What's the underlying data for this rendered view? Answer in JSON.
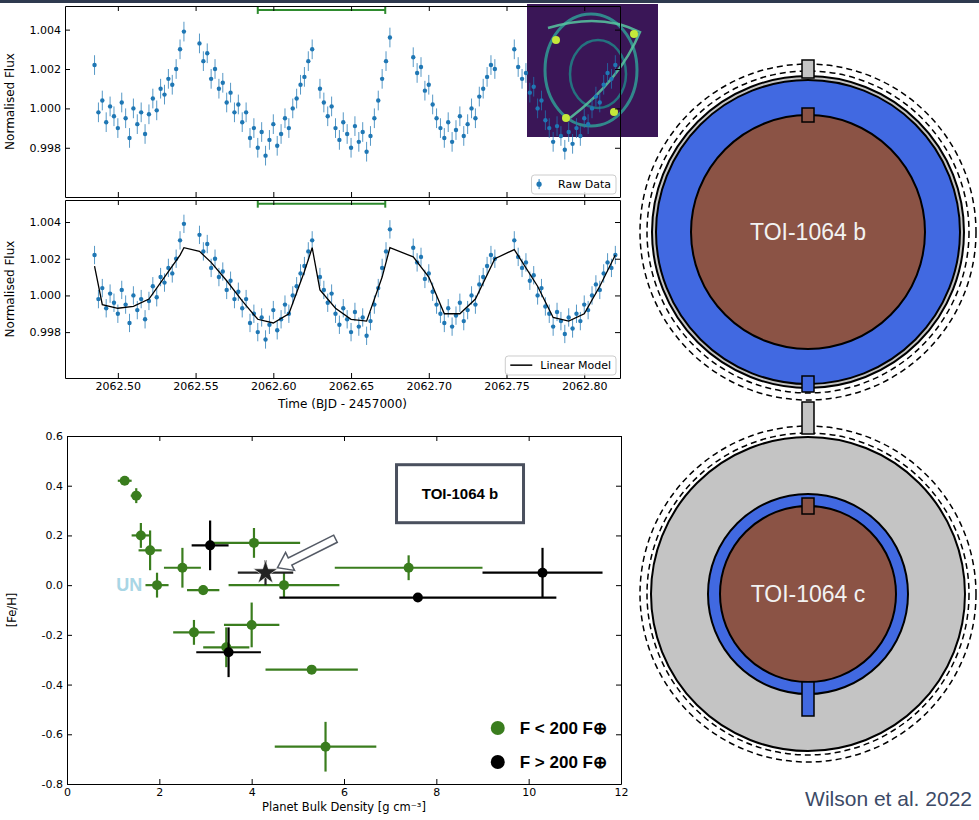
{
  "chart_data": [
    {
      "type": "scatter",
      "ylabel": "Normalised Flux",
      "xlim": [
        2062.466,
        2062.823
      ],
      "ylim": [
        0.9955,
        1.0052
      ],
      "xticks": [
        {
          "value": 2062.5,
          "label": "2062.50"
        },
        2062.55,
        {
          "value": 2062.6,
          "label": "2062.60"
        },
        2062.65,
        {
          "value": 2062.7,
          "label": "2062.70"
        },
        2062.75,
        {
          "value": 2062.8,
          "label": "2062.80"
        }
      ],
      "yticks": [
        0.998,
        {
          "value": 1.0,
          "label": "1.000"
        },
        1.002,
        1.004
      ],
      "tick_labels": "y",
      "legend": "lower right",
      "bracket": {
        "x": [
          2062.59,
          2062.672
        ],
        "y": 1.005,
        "color": "#2e8b2e"
      },
      "series": [
        {
          "name": "Raw Data",
          "type": "scatter",
          "marker": "circle",
          "color": "#1f77b4",
          "yerr": 0.0005,
          "x": [
            2062.485,
            2062.4875,
            2062.49,
            2062.4925,
            2062.495,
            2062.4975,
            2062.5,
            2062.5025,
            2062.505,
            2062.5075,
            2062.51,
            2062.5125,
            2062.515,
            2062.5175,
            2062.52,
            2062.5225,
            2062.525,
            2062.5275,
            2062.53,
            2062.5325,
            2062.535,
            2062.5375,
            2062.54,
            2062.5425,
            2062.5525,
            2062.555,
            2062.5575,
            2062.56,
            2062.5625,
            2062.565,
            2062.5675,
            2062.57,
            2062.5725,
            2062.575,
            2062.5775,
            2062.58,
            2062.5825,
            2062.585,
            2062.5875,
            2062.59,
            2062.5925,
            2062.595,
            2062.5975,
            2062.6,
            2062.6025,
            2062.605,
            2062.6075,
            2062.61,
            2062.6125,
            2062.615,
            2062.6175,
            2062.62,
            2062.6225,
            2062.625,
            2062.63,
            2062.6325,
            2062.635,
            2062.6375,
            2062.64,
            2062.6425,
            2062.645,
            2062.6475,
            2062.65,
            2062.6525,
            2062.655,
            2062.6575,
            2062.66,
            2062.6625,
            2062.665,
            2062.6675,
            2062.67,
            2062.6725,
            2062.675,
            2062.69,
            2062.6925,
            2062.695,
            2062.6975,
            2062.7,
            2062.7025,
            2062.705,
            2062.7075,
            2062.71,
            2062.7125,
            2062.715,
            2062.7175,
            2062.72,
            2062.7225,
            2062.725,
            2062.7275,
            2062.73,
            2062.7325,
            2062.735,
            2062.7375,
            2062.74,
            2062.7425,
            2062.755,
            2062.7575,
            2062.76,
            2062.7625,
            2062.765,
            2062.7675,
            2062.77,
            2062.7725,
            2062.775,
            2062.7775,
            2062.78,
            2062.7825,
            2062.785,
            2062.7875,
            2062.79,
            2062.7925,
            2062.795,
            2062.7975,
            2062.8,
            2062.8025,
            2062.805,
            2062.8075,
            2062.81,
            2062.8125,
            2062.815,
            2062.8175,
            2062.82
          ],
          "values": [
            1.0022,
            0.9998,
            1.0004,
            0.9993,
            1.0001,
            0.9996,
            0.999,
            1.0003,
            0.9995,
            0.9985,
            1.0,
            0.9992,
            0.9998,
            0.9987,
            0.9997,
            1.0005,
            0.9999,
            1.001,
            1.0007,
            1.0015,
            1.0012,
            1.002,
            1.003,
            1.0039,
            1.0033,
            1.0024,
            1.0028,
            1.0015,
            1.002,
            1.001,
            1.0013,
            1.0003,
            1.0008,
            0.9998,
            1.0002,
            0.9993,
            0.9998,
            0.9985,
            0.999,
            0.998,
            0.9988,
            0.9976,
            0.9984,
            0.9992,
            0.9981,
            0.9987,
            0.9995,
            0.999,
            1.0,
            1.0005,
            1.0012,
            1.0016,
            1.0024,
            1.003,
            1.001,
            1.0003,
            0.9996,
            1.0001,
            0.999,
            0.9984,
            0.9993,
            0.9987,
            0.998,
            0.9991,
            0.9983,
            0.9988,
            0.9978,
            0.9986,
            0.9995,
            1.0004,
            1.0015,
            1.0024,
            1.0036,
            1.0026,
            1.0018,
            1.0021,
            1.0009,
            1.0012,
            1.0002,
            0.9995,
            0.999,
            0.9985,
            0.9993,
            0.9983,
            0.9989,
            0.9996,
            0.9986,
            0.9992,
            1.0,
            0.9995,
            1.0006,
            1.001,
            1.0016,
            1.0022,
            1.002,
            1.003,
            1.0021,
            1.0015,
            1.0018,
            1.0008,
            1.0011,
            1.0,
            1.0004,
            0.9994,
            0.999,
            0.9983,
            0.9991,
            0.9986,
            0.9979,
            0.9988,
            0.9982,
            0.999,
            0.9986,
            0.9995,
            0.9992,
            1.0,
            1.0006,
            1.0003,
            1.0012,
            1.0018,
            1.0015,
            1.0022
          ]
        }
      ]
    },
    {
      "type": "scatter",
      "xlabel": "Time (BJD - 2457000)",
      "ylabel": "Normalised Flux",
      "xlim": [
        2062.466,
        2062.823
      ],
      "ylim": [
        0.9955,
        1.0052
      ],
      "xticks": [
        {
          "value": 2062.5,
          "label": "2062.50"
        },
        2062.55,
        {
          "value": 2062.6,
          "label": "2062.60"
        },
        2062.65,
        {
          "value": 2062.7,
          "label": "2062.70"
        },
        2062.75,
        {
          "value": 2062.8,
          "label": "2062.80"
        }
      ],
      "yticks": [
        0.998,
        {
          "value": 1.0,
          "label": "1.000"
        },
        1.002,
        1.004
      ],
      "legend": "lower right",
      "bracket": {
        "x": [
          2062.59,
          2062.672
        ],
        "y": 1.005,
        "color": "#2e8b2e"
      },
      "series": [
        {
          "type": "scatter",
          "marker": "circle",
          "color": "#1f77b4",
          "yerr": 0.0005,
          "x": [
            2062.485,
            2062.4875,
            2062.49,
            2062.4925,
            2062.495,
            2062.4975,
            2062.5,
            2062.5025,
            2062.505,
            2062.5075,
            2062.51,
            2062.5125,
            2062.515,
            2062.5175,
            2062.52,
            2062.5225,
            2062.525,
            2062.5275,
            2062.53,
            2062.5325,
            2062.535,
            2062.5375,
            2062.54,
            2062.5425,
            2062.5525,
            2062.555,
            2062.5575,
            2062.56,
            2062.5625,
            2062.565,
            2062.5675,
            2062.57,
            2062.5725,
            2062.575,
            2062.5775,
            2062.58,
            2062.5825,
            2062.585,
            2062.5875,
            2062.59,
            2062.5925,
            2062.595,
            2062.5975,
            2062.6,
            2062.6025,
            2062.605,
            2062.6075,
            2062.61,
            2062.6125,
            2062.615,
            2062.6175,
            2062.62,
            2062.6225,
            2062.625,
            2062.63,
            2062.6325,
            2062.635,
            2062.6375,
            2062.64,
            2062.6425,
            2062.645,
            2062.6475,
            2062.65,
            2062.6525,
            2062.655,
            2062.6575,
            2062.66,
            2062.6625,
            2062.665,
            2062.6675,
            2062.67,
            2062.6725,
            2062.675,
            2062.69,
            2062.6925,
            2062.695,
            2062.6975,
            2062.7,
            2062.7025,
            2062.705,
            2062.7075,
            2062.71,
            2062.7125,
            2062.715,
            2062.7175,
            2062.72,
            2062.7225,
            2062.725,
            2062.7275,
            2062.73,
            2062.7325,
            2062.735,
            2062.7375,
            2062.74,
            2062.7425,
            2062.755,
            2062.7575,
            2062.76,
            2062.7625,
            2062.765,
            2062.7675,
            2062.77,
            2062.7725,
            2062.775,
            2062.7775,
            2062.78,
            2062.7825,
            2062.785,
            2062.7875,
            2062.79,
            2062.7925,
            2062.795,
            2062.7975,
            2062.8,
            2062.8025,
            2062.805,
            2062.8075,
            2062.81,
            2062.8125,
            2062.815,
            2062.8175,
            2062.82
          ],
          "values": [
            1.0022,
            0.9998,
            1.0004,
            0.9993,
            1.0001,
            0.9996,
            0.999,
            1.0003,
            0.9995,
            0.9985,
            1.0,
            0.9992,
            0.9998,
            0.9987,
            0.9997,
            1.0005,
            0.9999,
            1.001,
            1.0007,
            1.0015,
            1.0012,
            1.002,
            1.003,
            1.0039,
            1.0033,
            1.0024,
            1.0028,
            1.0015,
            1.002,
            1.001,
            1.0013,
            1.0003,
            1.0008,
            0.9998,
            1.0002,
            0.9993,
            0.9998,
            0.9985,
            0.999,
            0.998,
            0.9988,
            0.9976,
            0.9984,
            0.9992,
            0.9981,
            0.9987,
            0.9995,
            0.999,
            1.0,
            1.0005,
            1.0012,
            1.0016,
            1.0024,
            1.003,
            1.001,
            1.0003,
            0.9996,
            1.0001,
            0.999,
            0.9984,
            0.9993,
            0.9987,
            0.998,
            0.9991,
            0.9983,
            0.9988,
            0.9978,
            0.9986,
            0.9995,
            1.0004,
            1.0015,
            1.0024,
            1.0036,
            1.0026,
            1.0018,
            1.0021,
            1.0009,
            1.0012,
            1.0002,
            0.9995,
            0.999,
            0.9985,
            0.9993,
            0.9983,
            0.9989,
            0.9996,
            0.9986,
            0.9992,
            1.0,
            0.9995,
            1.0006,
            1.001,
            1.0016,
            1.0022,
            1.002,
            1.003,
            1.0021,
            1.0015,
            1.0018,
            1.0008,
            1.0011,
            1.0,
            1.0004,
            0.9994,
            0.999,
            0.9983,
            0.9991,
            0.9986,
            0.9979,
            0.9988,
            0.9982,
            0.999,
            0.9986,
            0.9995,
            0.9992,
            1.0,
            1.0006,
            1.0003,
            1.0012,
            1.0018,
            1.0015,
            1.0022
          ]
        },
        {
          "name": "Linear Model",
          "type": "line",
          "line_style": "solid",
          "color": "#000000",
          "x": [
            2062.485,
            2062.49,
            2062.5,
            2062.51,
            2062.52,
            2062.53,
            2062.54,
            2062.5425,
            2062.5525,
            2062.56,
            2062.57,
            2062.58,
            2062.59,
            2062.6,
            2062.61,
            2062.62,
            2062.625,
            2062.63,
            2062.64,
            2062.65,
            2062.66,
            2062.67,
            2062.675,
            2062.69,
            2062.7,
            2062.71,
            2062.72,
            2062.73,
            2062.7425,
            2062.755,
            2062.77,
            2062.78,
            2062.79,
            2062.8,
            2062.81,
            2062.82
          ],
          "values": [
            1.0016,
            0.9995,
            0.9993,
            0.9994,
            0.9998,
            1.001,
            1.0022,
            1.0026,
            1.0024,
            1.0018,
            1.0008,
            0.9997,
            0.9987,
            0.9985,
            0.999,
            1.0013,
            1.0026,
            1.0003,
            0.9993,
            0.9987,
            0.9986,
            1.001,
            1.0026,
            1.0021,
            1.001,
            0.999,
            0.999,
            0.9998,
            1.002,
            1.0025,
            1.0005,
            0.9988,
            0.9986,
            0.999,
            1.0005,
            1.0022
          ]
        }
      ]
    },
    {
      "type": "scatter",
      "xlabel": "Planet Bulk Density [g cm⁻³]",
      "ylabel": "[Fe/H]",
      "xlim": [
        0,
        12
      ],
      "ylim": [
        -0.8,
        0.6
      ],
      "xticks": [
        0,
        2,
        4,
        6,
        8,
        10,
        12
      ],
      "yticks": [
        -0.8,
        -0.6,
        -0.4,
        -0.2,
        {
          "value": 0,
          "label": "0.0"
        },
        0.2,
        0.4,
        0.6
      ],
      "legend": "lower right",
      "annotations": [
        {
          "text": "UN",
          "x": 1.35,
          "y": 0.0,
          "color": "#a9d6e5"
        }
      ],
      "callout": {
        "text": "TOI-1064 b"
      },
      "series": [
        {
          "name": "F < 200 F⊕",
          "marker": "circle",
          "color": "#3a7d1e",
          "x": [
            1.25,
            1.5,
            1.6,
            1.8,
            1.95,
            2.5,
            2.95,
            2.75,
            3.45,
            4.0,
            4.05,
            4.7,
            5.3,
            5.6,
            7.4
          ],
          "values": [
            0.42,
            0.36,
            0.2,
            0.14,
            0.0,
            0.07,
            -0.02,
            -0.19,
            -0.25,
            -0.16,
            0.17,
            0.0,
            -0.34,
            -0.65,
            0.07
          ],
          "xerr": [
            0.15,
            0.12,
            0.2,
            0.25,
            0.25,
            0.4,
            0.35,
            0.45,
            0.5,
            0.6,
            1.0,
            1.2,
            1.0,
            1.1,
            1.6
          ],
          "yerr": [
            0.01,
            0.03,
            0.05,
            0.08,
            0.05,
            0.08,
            0.02,
            0.05,
            0.08,
            0.09,
            0.06,
            0.05,
            0.01,
            0.1,
            0.05
          ]
        },
        {
          "name": "F > 200 F⊕",
          "marker": "circle",
          "color": "#000000",
          "x": [
            3.1,
            3.5,
            7.6,
            10.3
          ],
          "values": [
            0.16,
            -0.27,
            -0.05,
            0.05
          ],
          "xerr": [
            0.4,
            0.7,
            3.0,
            1.3
          ],
          "yerr": [
            0.1,
            0.1,
            0.01,
            0.1
          ]
        },
        {
          "marker": "star",
          "color": "#222222",
          "x": [
            4.3
          ],
          "values": [
            0.05
          ],
          "xerr": [
            0.6
          ],
          "yerr": [
            0.05
          ]
        }
      ]
    }
  ],
  "diagram": {
    "planets": [
      {
        "label": "TOI-1064 b"
      },
      {
        "label": "TOI-1064 c"
      }
    ]
  },
  "citation": "Wilson et al. 2022"
}
